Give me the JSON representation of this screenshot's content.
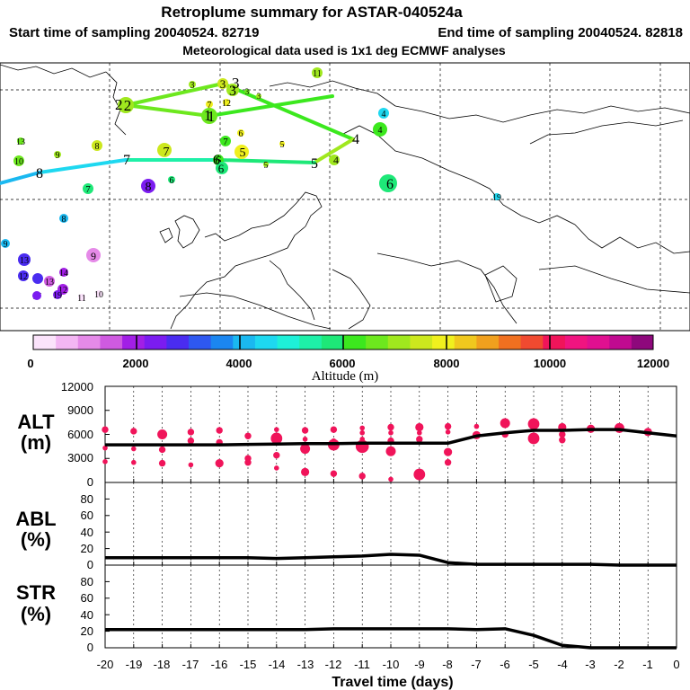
{
  "title": "Retroplume summary for ASTAR-040524a",
  "subtitle1_left": "Start time of sampling 20040524. 82719",
  "subtitle1_right": "End time of sampling 20040524. 82818",
  "subtitle2": "Meteorological data used is 1x1 deg ECMWF analyses",
  "chart_data": [
    {
      "type": "map",
      "title": "Retroplume trajectory map",
      "colorbar": {
        "label": "Altitude (m)",
        "ticks": [
          "0",
          "2000",
          "4000",
          "6000",
          "8000",
          "10000",
          "12000"
        ],
        "colors": [
          "#fbe3fb",
          "#f3b6f3",
          "#e58ae8",
          "#cf5ae0",
          "#a21fe6",
          "#7b1cf0",
          "#4a2cf0",
          "#2e58f0",
          "#1b86f0",
          "#1ab8f0",
          "#1ed8f0",
          "#1ef0d8",
          "#1ef0a8",
          "#1ee878",
          "#3ce81e",
          "#6de81e",
          "#a0e81e",
          "#cce81e",
          "#f0f01e",
          "#f0c81e",
          "#f0a01e",
          "#f07020",
          "#f04a30",
          "#f0145a",
          "#f01480",
          "#e01090",
          "#c00a90",
          "#8e087c"
        ]
      },
      "main_path": [
        {
          "day": "2",
          "alt": 5000
        },
        {
          "day": "3",
          "alt": 6000
        },
        {
          "day": "1",
          "alt": 6000
        },
        {
          "day": "4",
          "alt": 6800
        },
        {
          "day": "5",
          "alt": 6300
        },
        {
          "day": "6",
          "alt": 6000
        },
        {
          "day": "7",
          "alt": 5200
        },
        {
          "day": "8",
          "alt": 4300
        }
      ],
      "clusters": [
        {
          "day": "11",
          "alt": 6600
        },
        {
          "day": "3",
          "alt": 6600
        },
        {
          "day": "3",
          "alt": 6700
        },
        {
          "day": "3",
          "alt": 6400
        },
        {
          "day": "3",
          "alt": 6200
        },
        {
          "day": "3",
          "alt": 6500
        },
        {
          "day": "2",
          "alt": 6500
        },
        {
          "day": "7",
          "alt": 7000
        },
        {
          "day": "12",
          "alt": 7200
        },
        {
          "day": "1",
          "alt": 6400
        },
        {
          "day": "4",
          "alt": 4300
        },
        {
          "day": "4",
          "alt": 5400
        },
        {
          "day": "13",
          "alt": 6000
        },
        {
          "day": "9",
          "alt": 6500
        },
        {
          "day": "8",
          "alt": 6700
        },
        {
          "day": "7",
          "alt": 6700
        },
        {
          "day": "6",
          "alt": 7200
        },
        {
          "day": "5",
          "alt": 7400
        },
        {
          "day": "5",
          "alt": 7000
        },
        {
          "day": "7",
          "alt": 5600
        },
        {
          "day": "6",
          "alt": 7000
        },
        {
          "day": "10",
          "alt": 6800
        },
        {
          "day": "6",
          "alt": 5600
        },
        {
          "day": "6",
          "alt": 4700
        },
        {
          "day": "4",
          "alt": 6000
        },
        {
          "day": "5",
          "alt": 5800
        },
        {
          "day": "7",
          "alt": 4800
        },
        {
          "day": "8",
          "alt": 1700
        },
        {
          "day": "6",
          "alt": 4600
        },
        {
          "day": "19",
          "alt": 4700
        },
        {
          "day": "8",
          "alt": 4200
        },
        {
          "day": "9",
          "alt": 4400
        },
        {
          "day": "9",
          "alt": 1200
        },
        {
          "day": "13",
          "alt": 1200
        },
        {
          "day": "14",
          "alt": 1600
        },
        {
          "day": "12",
          "alt": 1700
        },
        {
          "day": "13",
          "alt": 1000
        },
        {
          "day": "17",
          "alt": 1900
        },
        {
          "day": "12",
          "alt": 1800
        },
        {
          "day": "11",
          "alt": 400
        },
        {
          "day": "10",
          "alt": 300
        },
        {
          "day": "19",
          "alt": 1600
        },
        {
          "day": "16",
          "alt": 1900
        }
      ]
    },
    {
      "type": "scatter+line",
      "panel": "ALT",
      "ylabel_line1": "ALT",
      "ylabel_line2": "(m)",
      "ylim": [
        0,
        12000
      ],
      "yticks": [
        "0",
        "3000",
        "6000",
        "9000",
        "12000"
      ],
      "x": [
        -20,
        -19,
        -18,
        -17,
        -16,
        -15,
        -14,
        -13,
        -12,
        -11,
        -10,
        -9,
        -8,
        -7,
        -6,
        -5,
        -4,
        -3,
        -2,
        -1,
        0
      ],
      "line": [
        4700,
        4700,
        4700,
        4700,
        4700,
        4750,
        4800,
        4850,
        4850,
        4900,
        4900,
        4900,
        4900,
        5800,
        6200,
        6500,
        6500,
        6600,
        6600,
        6200,
        5800
      ],
      "clusters": [
        {
          "x": -20,
          "y": 6600,
          "size": 3
        },
        {
          "x": -20,
          "y": 4300,
          "size": 2
        },
        {
          "x": -20,
          "y": 2600,
          "size": 2
        },
        {
          "x": -19,
          "y": 6400,
          "size": 3
        },
        {
          "x": -19,
          "y": 4200,
          "size": 2
        },
        {
          "x": -19,
          "y": 2500,
          "size": 2
        },
        {
          "x": -18,
          "y": 6000,
          "size": 5
        },
        {
          "x": -18,
          "y": 4100,
          "size": 3
        },
        {
          "x": -18,
          "y": 2400,
          "size": 3
        },
        {
          "x": -17,
          "y": 6300,
          "size": 3
        },
        {
          "x": -17,
          "y": 5200,
          "size": 3
        },
        {
          "x": -17,
          "y": 2200,
          "size": 2
        },
        {
          "x": -16,
          "y": 6500,
          "size": 3
        },
        {
          "x": -16,
          "y": 5000,
          "size": 3
        },
        {
          "x": -16,
          "y": 2400,
          "size": 4
        },
        {
          "x": -15,
          "y": 5800,
          "size": 3
        },
        {
          "x": -15,
          "y": 3000,
          "size": 3
        },
        {
          "x": -15,
          "y": 2500,
          "size": 3
        },
        {
          "x": -14,
          "y": 6600,
          "size": 2
        },
        {
          "x": -14,
          "y": 5500,
          "size": 6
        },
        {
          "x": -14,
          "y": 3400,
          "size": 3
        },
        {
          "x": -14,
          "y": 1800,
          "size": 2
        },
        {
          "x": -13,
          "y": 6500,
          "size": 3
        },
        {
          "x": -13,
          "y": 5400,
          "size": 2
        },
        {
          "x": -13,
          "y": 4200,
          "size": 5
        },
        {
          "x": -13,
          "y": 1300,
          "size": 4
        },
        {
          "x": -12,
          "y": 6600,
          "size": 3
        },
        {
          "x": -12,
          "y": 5200,
          "size": 2
        },
        {
          "x": -12,
          "y": 4700,
          "size": 6
        },
        {
          "x": -12,
          "y": 1100,
          "size": 3
        },
        {
          "x": -11,
          "y": 6800,
          "size": 2
        },
        {
          "x": -11,
          "y": 6200,
          "size": 2
        },
        {
          "x": -11,
          "y": 5400,
          "size": 2
        },
        {
          "x": -11,
          "y": 4500,
          "size": 7
        },
        {
          "x": -11,
          "y": 800,
          "size": 3
        },
        {
          "x": -10,
          "y": 6900,
          "size": 3
        },
        {
          "x": -10,
          "y": 6200,
          "size": 2
        },
        {
          "x": -10,
          "y": 5200,
          "size": 3
        },
        {
          "x": -10,
          "y": 3900,
          "size": 5
        },
        {
          "x": -10,
          "y": 400,
          "size": 2
        },
        {
          "x": -9,
          "y": 6900,
          "size": 4
        },
        {
          "x": -9,
          "y": 6200,
          "size": 2
        },
        {
          "x": -9,
          "y": 5400,
          "size": 3
        },
        {
          "x": -9,
          "y": 1000,
          "size": 6
        },
        {
          "x": -8,
          "y": 7000,
          "size": 3
        },
        {
          "x": -8,
          "y": 6300,
          "size": 2
        },
        {
          "x": -8,
          "y": 3800,
          "size": 4
        },
        {
          "x": -8,
          "y": 2500,
          "size": 3
        },
        {
          "x": -7,
          "y": 7000,
          "size": 2
        },
        {
          "x": -7,
          "y": 5900,
          "size": 4
        },
        {
          "x": -6,
          "y": 7400,
          "size": 5
        },
        {
          "x": -6,
          "y": 6000,
          "size": 3
        },
        {
          "x": -5,
          "y": 7300,
          "size": 6
        },
        {
          "x": -5,
          "y": 5500,
          "size": 6
        },
        {
          "x": -4,
          "y": 6900,
          "size": 4
        },
        {
          "x": -4,
          "y": 6000,
          "size": 3
        },
        {
          "x": -4,
          "y": 5300,
          "size": 3
        },
        {
          "x": -3,
          "y": 6700,
          "size": 4
        },
        {
          "x": -2,
          "y": 6800,
          "size": 5
        },
        {
          "x": -1,
          "y": 6300,
          "size": 4
        }
      ]
    },
    {
      "type": "line",
      "panel": "ABL",
      "ylabel_line1": "ABL",
      "ylabel_line2": "(%)",
      "ylim": [
        0,
        100
      ],
      "yticks": [
        "0",
        "20",
        "40",
        "60",
        "80"
      ],
      "x": [
        -20,
        -19,
        -18,
        -17,
        -16,
        -15,
        -14,
        -13,
        -12,
        -11,
        -10,
        -9,
        -8,
        -7,
        -6,
        -5,
        -4,
        -3,
        -2,
        -1,
        0
      ],
      "values": [
        9,
        9,
        9,
        9,
        9,
        9,
        8,
        9,
        10,
        11,
        13,
        12,
        3,
        1,
        1,
        1,
        1,
        1,
        0,
        0,
        0
      ]
    },
    {
      "type": "line",
      "panel": "STR",
      "ylabel_line1": "STR",
      "ylabel_line2": "(%)",
      "ylim": [
        0,
        100
      ],
      "yticks": [
        "0",
        "20",
        "40",
        "60",
        "80"
      ],
      "x": [
        -20,
        -19,
        -18,
        -17,
        -16,
        -15,
        -14,
        -13,
        -12,
        -11,
        -10,
        -9,
        -8,
        -7,
        -6,
        -5,
        -4,
        -3,
        -2,
        -1,
        0
      ],
      "values": [
        22,
        22,
        22,
        22,
        22,
        22,
        22,
        22,
        23,
        23,
        23,
        23,
        23,
        22,
        23,
        15,
        3,
        0,
        0,
        0,
        0
      ],
      "xlabel": "Travel time (days)",
      "xticks": [
        "-20",
        "-19",
        "-18",
        "-17",
        "-16",
        "-15",
        "-14",
        "-13",
        "-12",
        "-11",
        "-10",
        "-9",
        "-8",
        "-7",
        "-6",
        "-5",
        "-4",
        "-3",
        "-2",
        "-1",
        "0"
      ]
    }
  ]
}
